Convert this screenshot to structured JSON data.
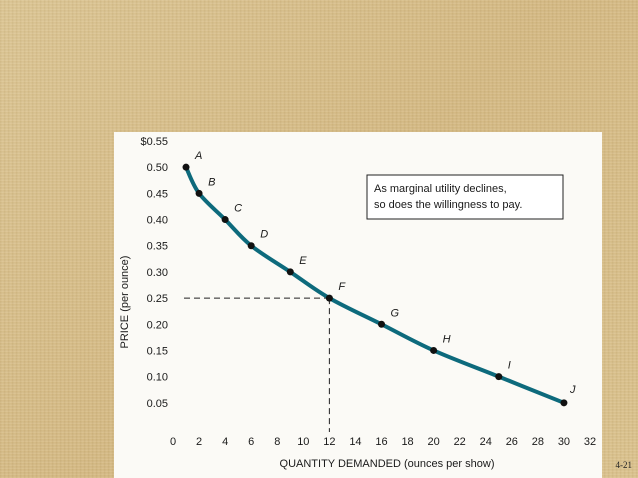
{
  "slide_number": "4-21",
  "chart_data": {
    "type": "line",
    "xlabel": "QUANTITY DEMANDED (ounces per show)",
    "ylabel": "PRICE (per ounce)",
    "xlim": [
      0,
      32
    ],
    "ylim": [
      0,
      0.55
    ],
    "x_ticks": [
      "0",
      "2",
      "4",
      "6",
      "8",
      "10",
      "12",
      "14",
      "16",
      "18",
      "20",
      "22",
      "24",
      "26",
      "28",
      "30",
      "32"
    ],
    "y_ticks": [
      "$0.55",
      "0.50",
      "0.45",
      "0.40",
      "0.35",
      "0.30",
      "0.25",
      "0.20",
      "0.15",
      "0.10",
      "0.05"
    ],
    "grid": false,
    "series": [
      {
        "color": "#0d6a7c",
        "points": [
          {
            "label": "A",
            "x": 1,
            "y": 0.5
          },
          {
            "label": "B",
            "x": 2,
            "y": 0.45
          },
          {
            "label": "C",
            "x": 4,
            "y": 0.4
          },
          {
            "label": "D",
            "x": 6,
            "y": 0.35
          },
          {
            "label": "E",
            "x": 9,
            "y": 0.3
          },
          {
            "label": "F",
            "x": 12,
            "y": 0.25
          },
          {
            "label": "G",
            "x": 16,
            "y": 0.2
          },
          {
            "label": "H",
            "x": 20,
            "y": 0.15
          },
          {
            "label": "I",
            "x": 25,
            "y": 0.1
          },
          {
            "label": "J",
            "x": 30,
            "y": 0.05
          }
        ]
      }
    ],
    "reference_point": {
      "x": 12,
      "y": 0.25
    },
    "annotation": [
      "As marginal utility declines,",
      "so does the willingness to pay."
    ]
  }
}
